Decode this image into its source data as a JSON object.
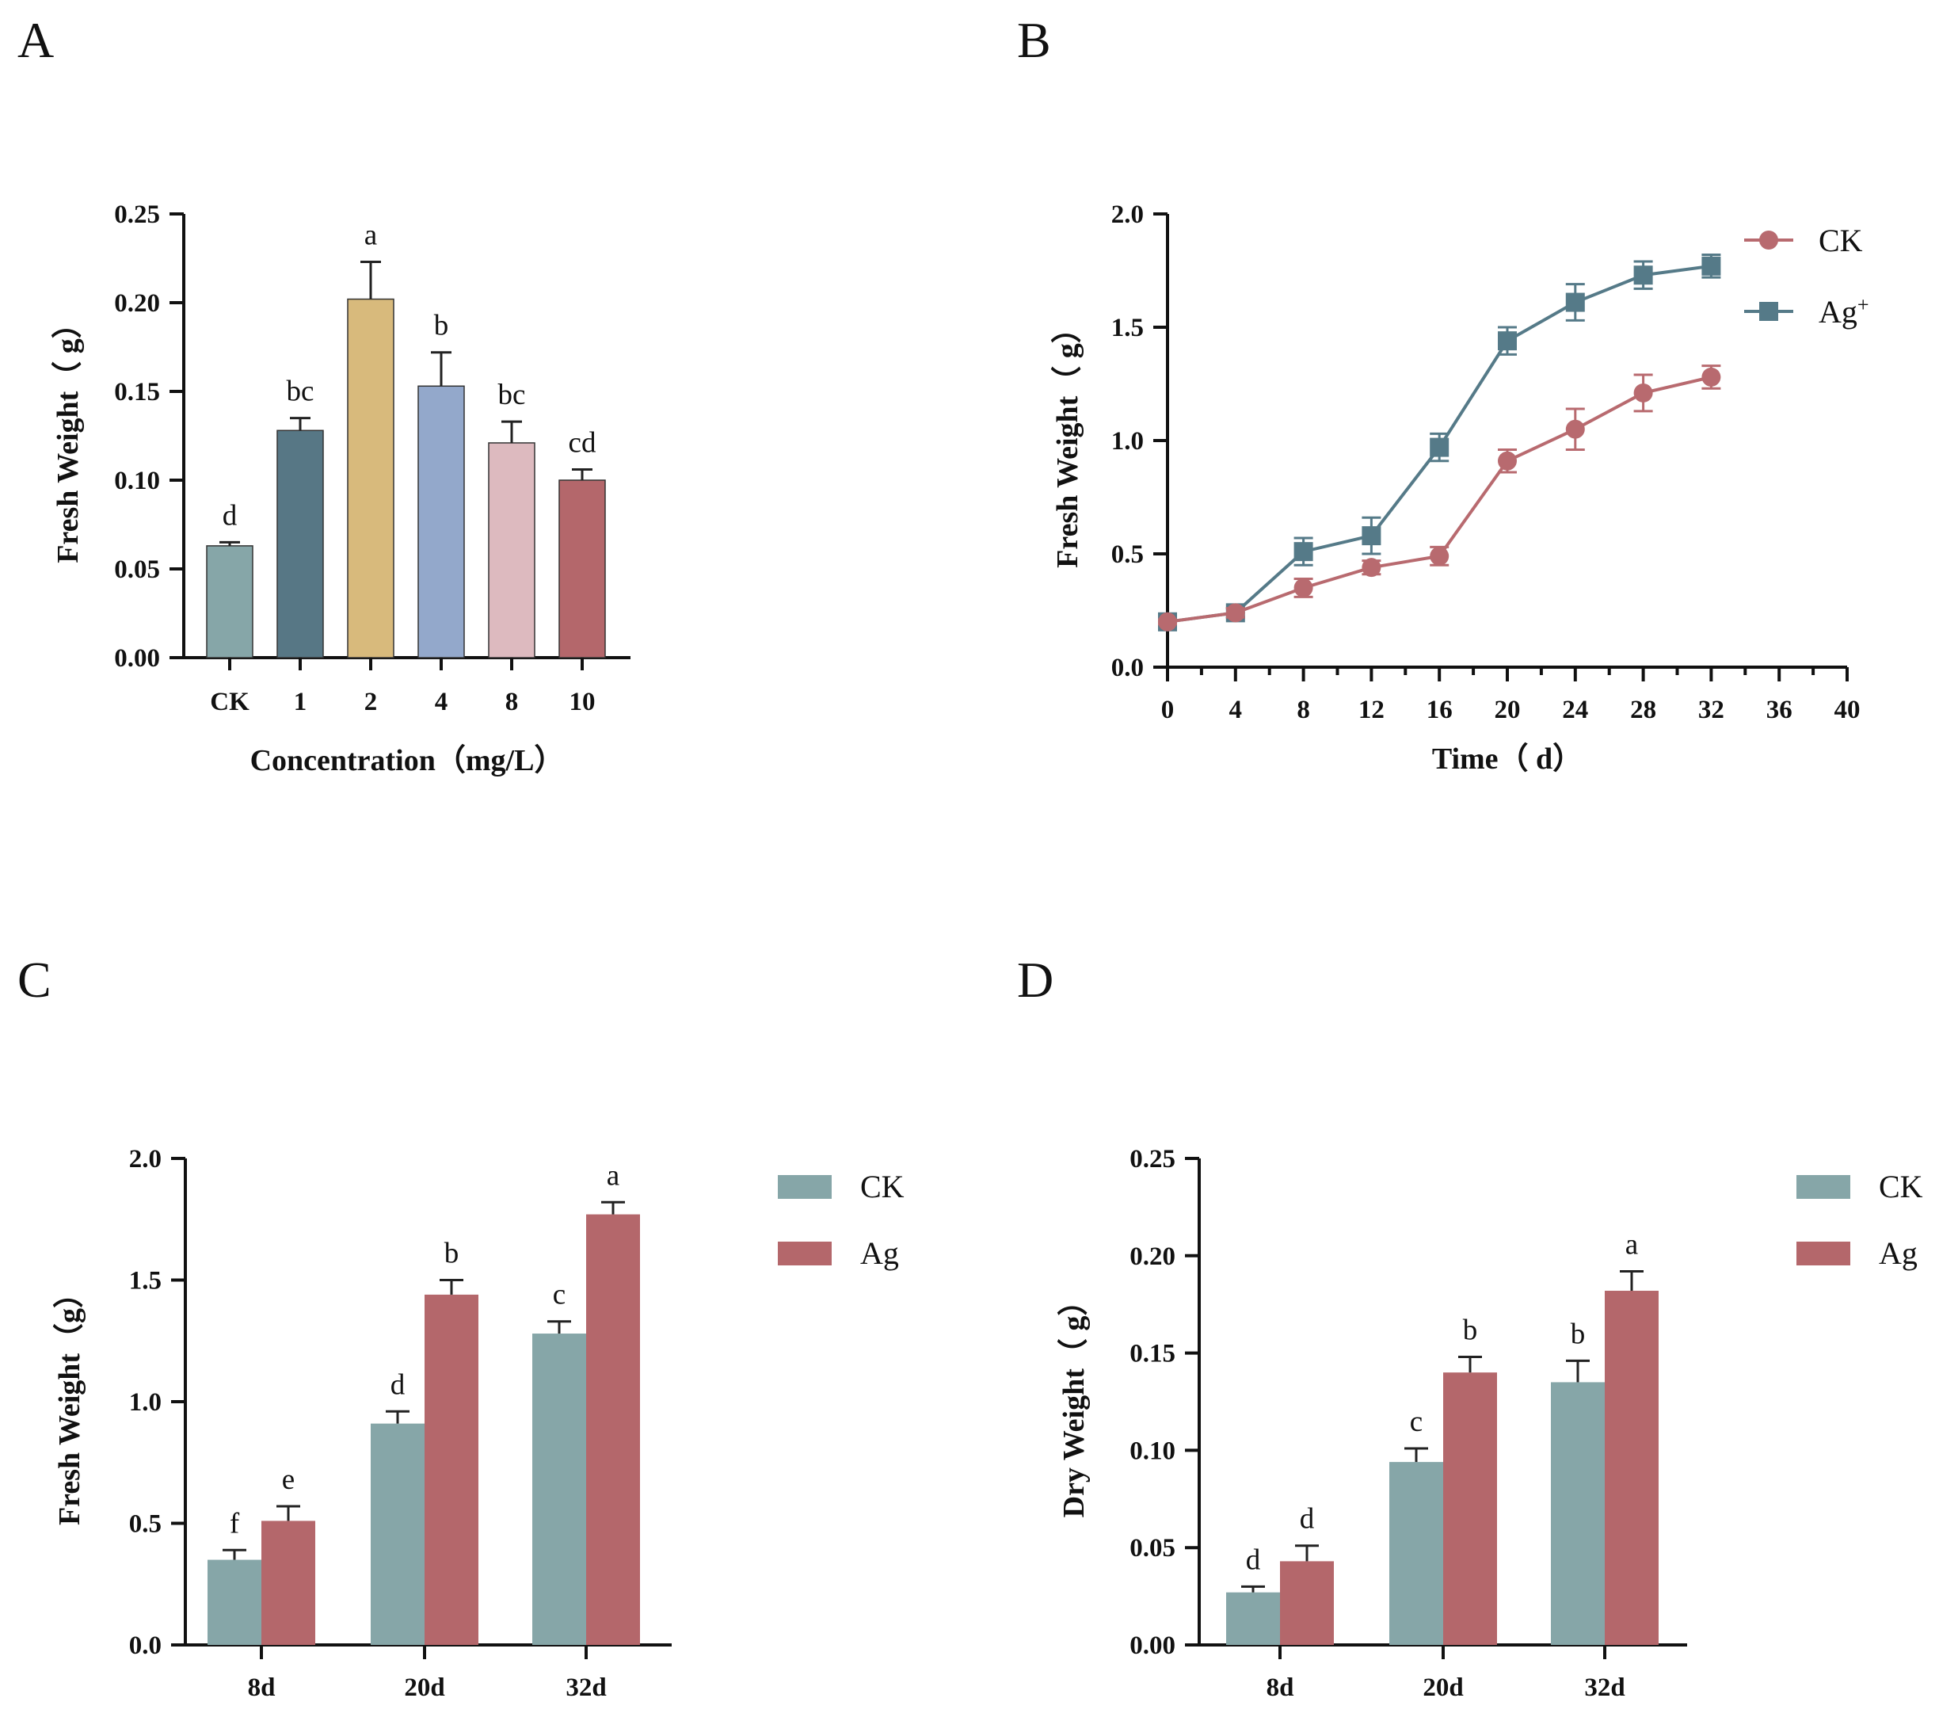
{
  "panels": {
    "A": "A",
    "B": "B",
    "C": "C",
    "D": "D"
  },
  "colors": {
    "ck_green": "#86A6A8",
    "ag_red": "#B4676B",
    "line_ck": "#B86A6F",
    "line_ag": "#557A88"
  },
  "chart_data": [
    {
      "id": "A",
      "type": "bar",
      "title": "",
      "xlabel": "Concentration（mg/L）",
      "ylabel": "Fresh Weight（ g）",
      "ylim": [
        0,
        0.25
      ],
      "yticks": [
        "0.00",
        "0.05",
        "0.10",
        "0.15",
        "0.20",
        "0.25"
      ],
      "categories": [
        "CK",
        "1",
        "2",
        "4",
        "8",
        "10"
      ],
      "values": [
        0.063,
        0.128,
        0.202,
        0.153,
        0.121,
        0.1
      ],
      "errors": [
        0.002,
        0.007,
        0.021,
        0.019,
        0.012,
        0.006
      ],
      "letters": [
        "d",
        "bc",
        "a",
        "b",
        "bc",
        "cd"
      ],
      "bar_colors": [
        "#86A6A8",
        "#577785",
        "#D8BA7C",
        "#93A8CB",
        "#DDBABF",
        "#B4676B"
      ]
    },
    {
      "id": "B",
      "type": "line",
      "title": "",
      "xlabel": "Time（ d）",
      "ylabel": "Fresh Weight（ g）",
      "xlim": [
        0,
        40
      ],
      "ylim": [
        0,
        2.0
      ],
      "xticks": [
        "0",
        "4",
        "8",
        "12",
        "16",
        "20",
        "24",
        "28",
        "32",
        "36",
        "40"
      ],
      "yticks": [
        "0.0",
        "0.5",
        "1.0",
        "1.5",
        "2.0"
      ],
      "series": [
        {
          "name": "CK",
          "sup": "",
          "marker": "circle",
          "x": [
            0,
            4,
            8,
            12,
            16,
            20,
            24,
            28,
            32
          ],
          "values": [
            0.2,
            0.24,
            0.35,
            0.44,
            0.49,
            0.91,
            1.05,
            1.21,
            1.28
          ],
          "errors": [
            0.01,
            0.02,
            0.04,
            0.03,
            0.04,
            0.05,
            0.09,
            0.08,
            0.05
          ]
        },
        {
          "name": "Ag",
          "sup": "+",
          "marker": "square",
          "x": [
            0,
            4,
            8,
            12,
            16,
            20,
            24,
            28,
            32
          ],
          "values": [
            0.2,
            0.24,
            0.51,
            0.58,
            0.97,
            1.44,
            1.61,
            1.73,
            1.77
          ],
          "errors": [
            0.01,
            0.02,
            0.06,
            0.08,
            0.06,
            0.06,
            0.08,
            0.06,
            0.05
          ]
        }
      ]
    },
    {
      "id": "C",
      "type": "bar",
      "title": "",
      "xlabel": "",
      "ylabel": "Fresh Weight（g）",
      "ylim": [
        0,
        2.0
      ],
      "yticks": [
        "0.0",
        "0.5",
        "1.0",
        "1.5",
        "2.0"
      ],
      "categories": [
        "8d",
        "20d",
        "32d"
      ],
      "series": [
        {
          "name": "CK",
          "values": [
            0.35,
            0.91,
            1.28
          ],
          "errors": [
            0.04,
            0.05,
            0.05
          ],
          "letters": [
            "f",
            "d",
            "c"
          ]
        },
        {
          "name": "Ag",
          "values": [
            0.51,
            1.44,
            1.77
          ],
          "errors": [
            0.06,
            0.06,
            0.05
          ],
          "letters": [
            "e",
            "b",
            "a"
          ]
        }
      ]
    },
    {
      "id": "D",
      "type": "bar",
      "title": "",
      "xlabel": "",
      "ylabel": "Dry Weight（ g）",
      "ylim": [
        0,
        0.25
      ],
      "yticks": [
        "0.00",
        "0.05",
        "0.10",
        "0.15",
        "0.20",
        "0.25"
      ],
      "categories": [
        "8d",
        "20d",
        "32d"
      ],
      "series": [
        {
          "name": "CK",
          "values": [
            0.027,
            0.094,
            0.135
          ],
          "errors": [
            0.003,
            0.007,
            0.011
          ],
          "letters": [
            "d",
            "c",
            "b"
          ]
        },
        {
          "name": "Ag",
          "values": [
            0.043,
            0.14,
            0.182
          ],
          "errors": [
            0.008,
            0.008,
            0.01
          ],
          "letters": [
            "d",
            "b",
            "a"
          ]
        }
      ]
    }
  ]
}
